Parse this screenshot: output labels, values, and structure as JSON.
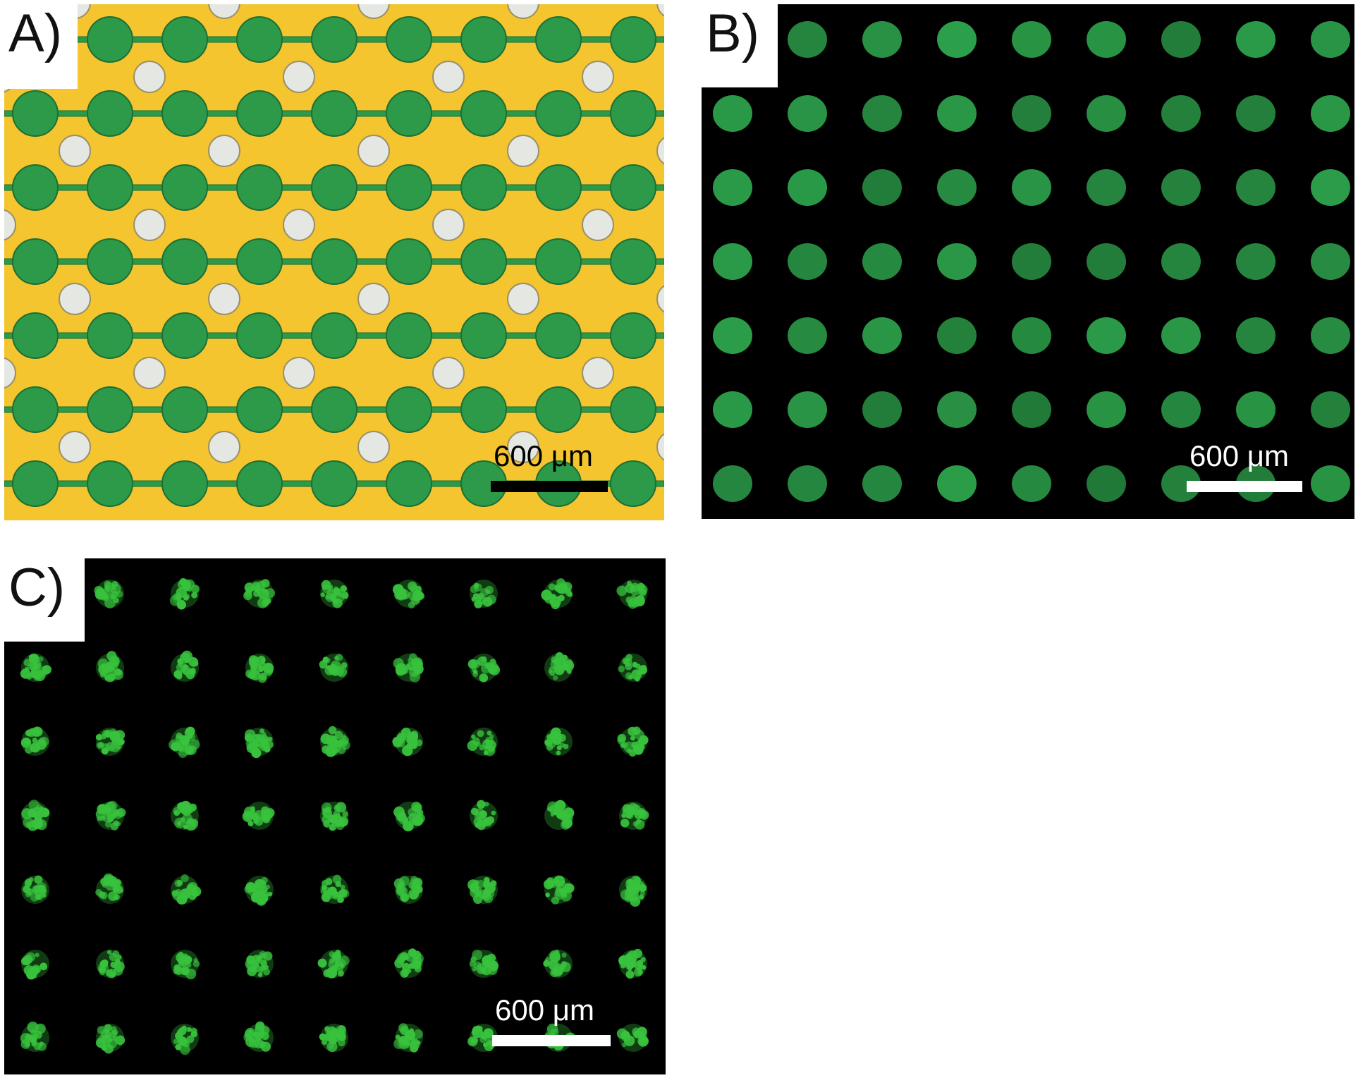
{
  "panels": [
    {
      "id": "A",
      "label": "A)",
      "imaging": "brightfield",
      "background_color": "#f4c52e",
      "spot_color": "#2c9a48",
      "well_color": "#e4e7e2",
      "scale_bar": {
        "text": "600 μm",
        "color": "#000000",
        "length_um": 600
      }
    },
    {
      "id": "B",
      "label": "B)",
      "imaging": "fluorescence",
      "background_color": "#000000",
      "spot_color": "#2c9f4a",
      "scale_bar": {
        "text": "600 μm",
        "color": "#ffffff",
        "length_um": 600
      }
    },
    {
      "id": "C",
      "label": "C)",
      "imaging": "fluorescence",
      "background_color": "#000000",
      "spot_color": "#38c23d",
      "scale_bar": {
        "text": "600 μm",
        "color": "#ffffff",
        "length_um": 600
      }
    }
  ]
}
